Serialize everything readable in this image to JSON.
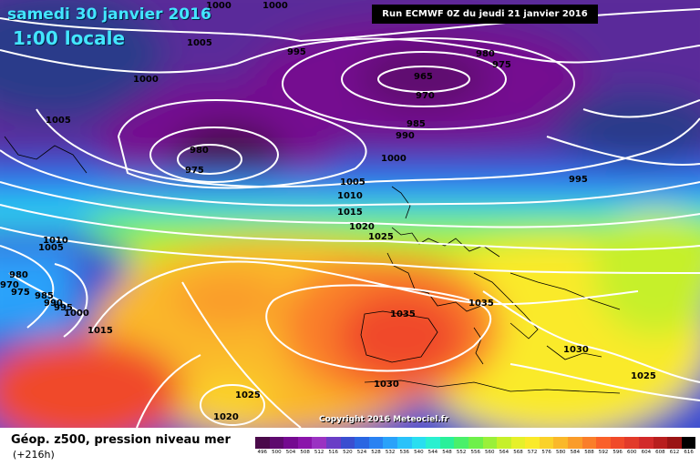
{
  "header": {
    "date": "samedi 30 janvier 2016",
    "time": "1:00 locale",
    "run": "Run ECMWF 0Z du jeudi 21 janvier 2016"
  },
  "copyright": "Copyright 2016 Meteociel.fr",
  "legend": {
    "title": "Géop. z500, pression niveau mer",
    "subtitle": "(+216h)",
    "ticks": [
      "496",
      "500",
      "504",
      "508",
      "512",
      "516",
      "520",
      "524",
      "528",
      "532",
      "536",
      "540",
      "544",
      "548",
      "552",
      "556",
      "560",
      "564",
      "568",
      "572",
      "576",
      "580",
      "584",
      "588",
      "592",
      "596",
      "600",
      "604",
      "608",
      "612",
      "616"
    ],
    "colors": [
      "#4a0a4a",
      "#5e0a6e",
      "#740a90",
      "#8a14aa",
      "#9a32c2",
      "#6a3ec6",
      "#3a4ed0",
      "#2a66e2",
      "#2a82f2",
      "#2aa2fa",
      "#2ac2fa",
      "#2adef0",
      "#2af0d0",
      "#2af09a",
      "#4af06a",
      "#6ef04a",
      "#9af03a",
      "#c6f02a",
      "#e6f02a",
      "#faea2a",
      "#fad22a",
      "#fab82a",
      "#fa9c2a",
      "#fa7e2a",
      "#fa602a",
      "#f04a2a",
      "#e23a2a",
      "#d22a2a",
      "#b81e1e",
      "#9a1414",
      "#000000"
    ]
  },
  "isobar_labels": [
    "1000",
    "1000",
    "995",
    "1005",
    "1000",
    "980",
    "975",
    "965",
    "970",
    "985",
    "990",
    "1005",
    "980",
    "975",
    "1000",
    "995",
    "1005",
    "1010",
    "1015",
    "1020",
    "1025",
    "1010",
    "1005",
    "980",
    "970",
    "975",
    "985",
    "990",
    "995",
    "1000",
    "1015",
    "1035",
    "1035",
    "1030",
    "1030",
    "1025",
    "1025",
    "1020"
  ]
}
